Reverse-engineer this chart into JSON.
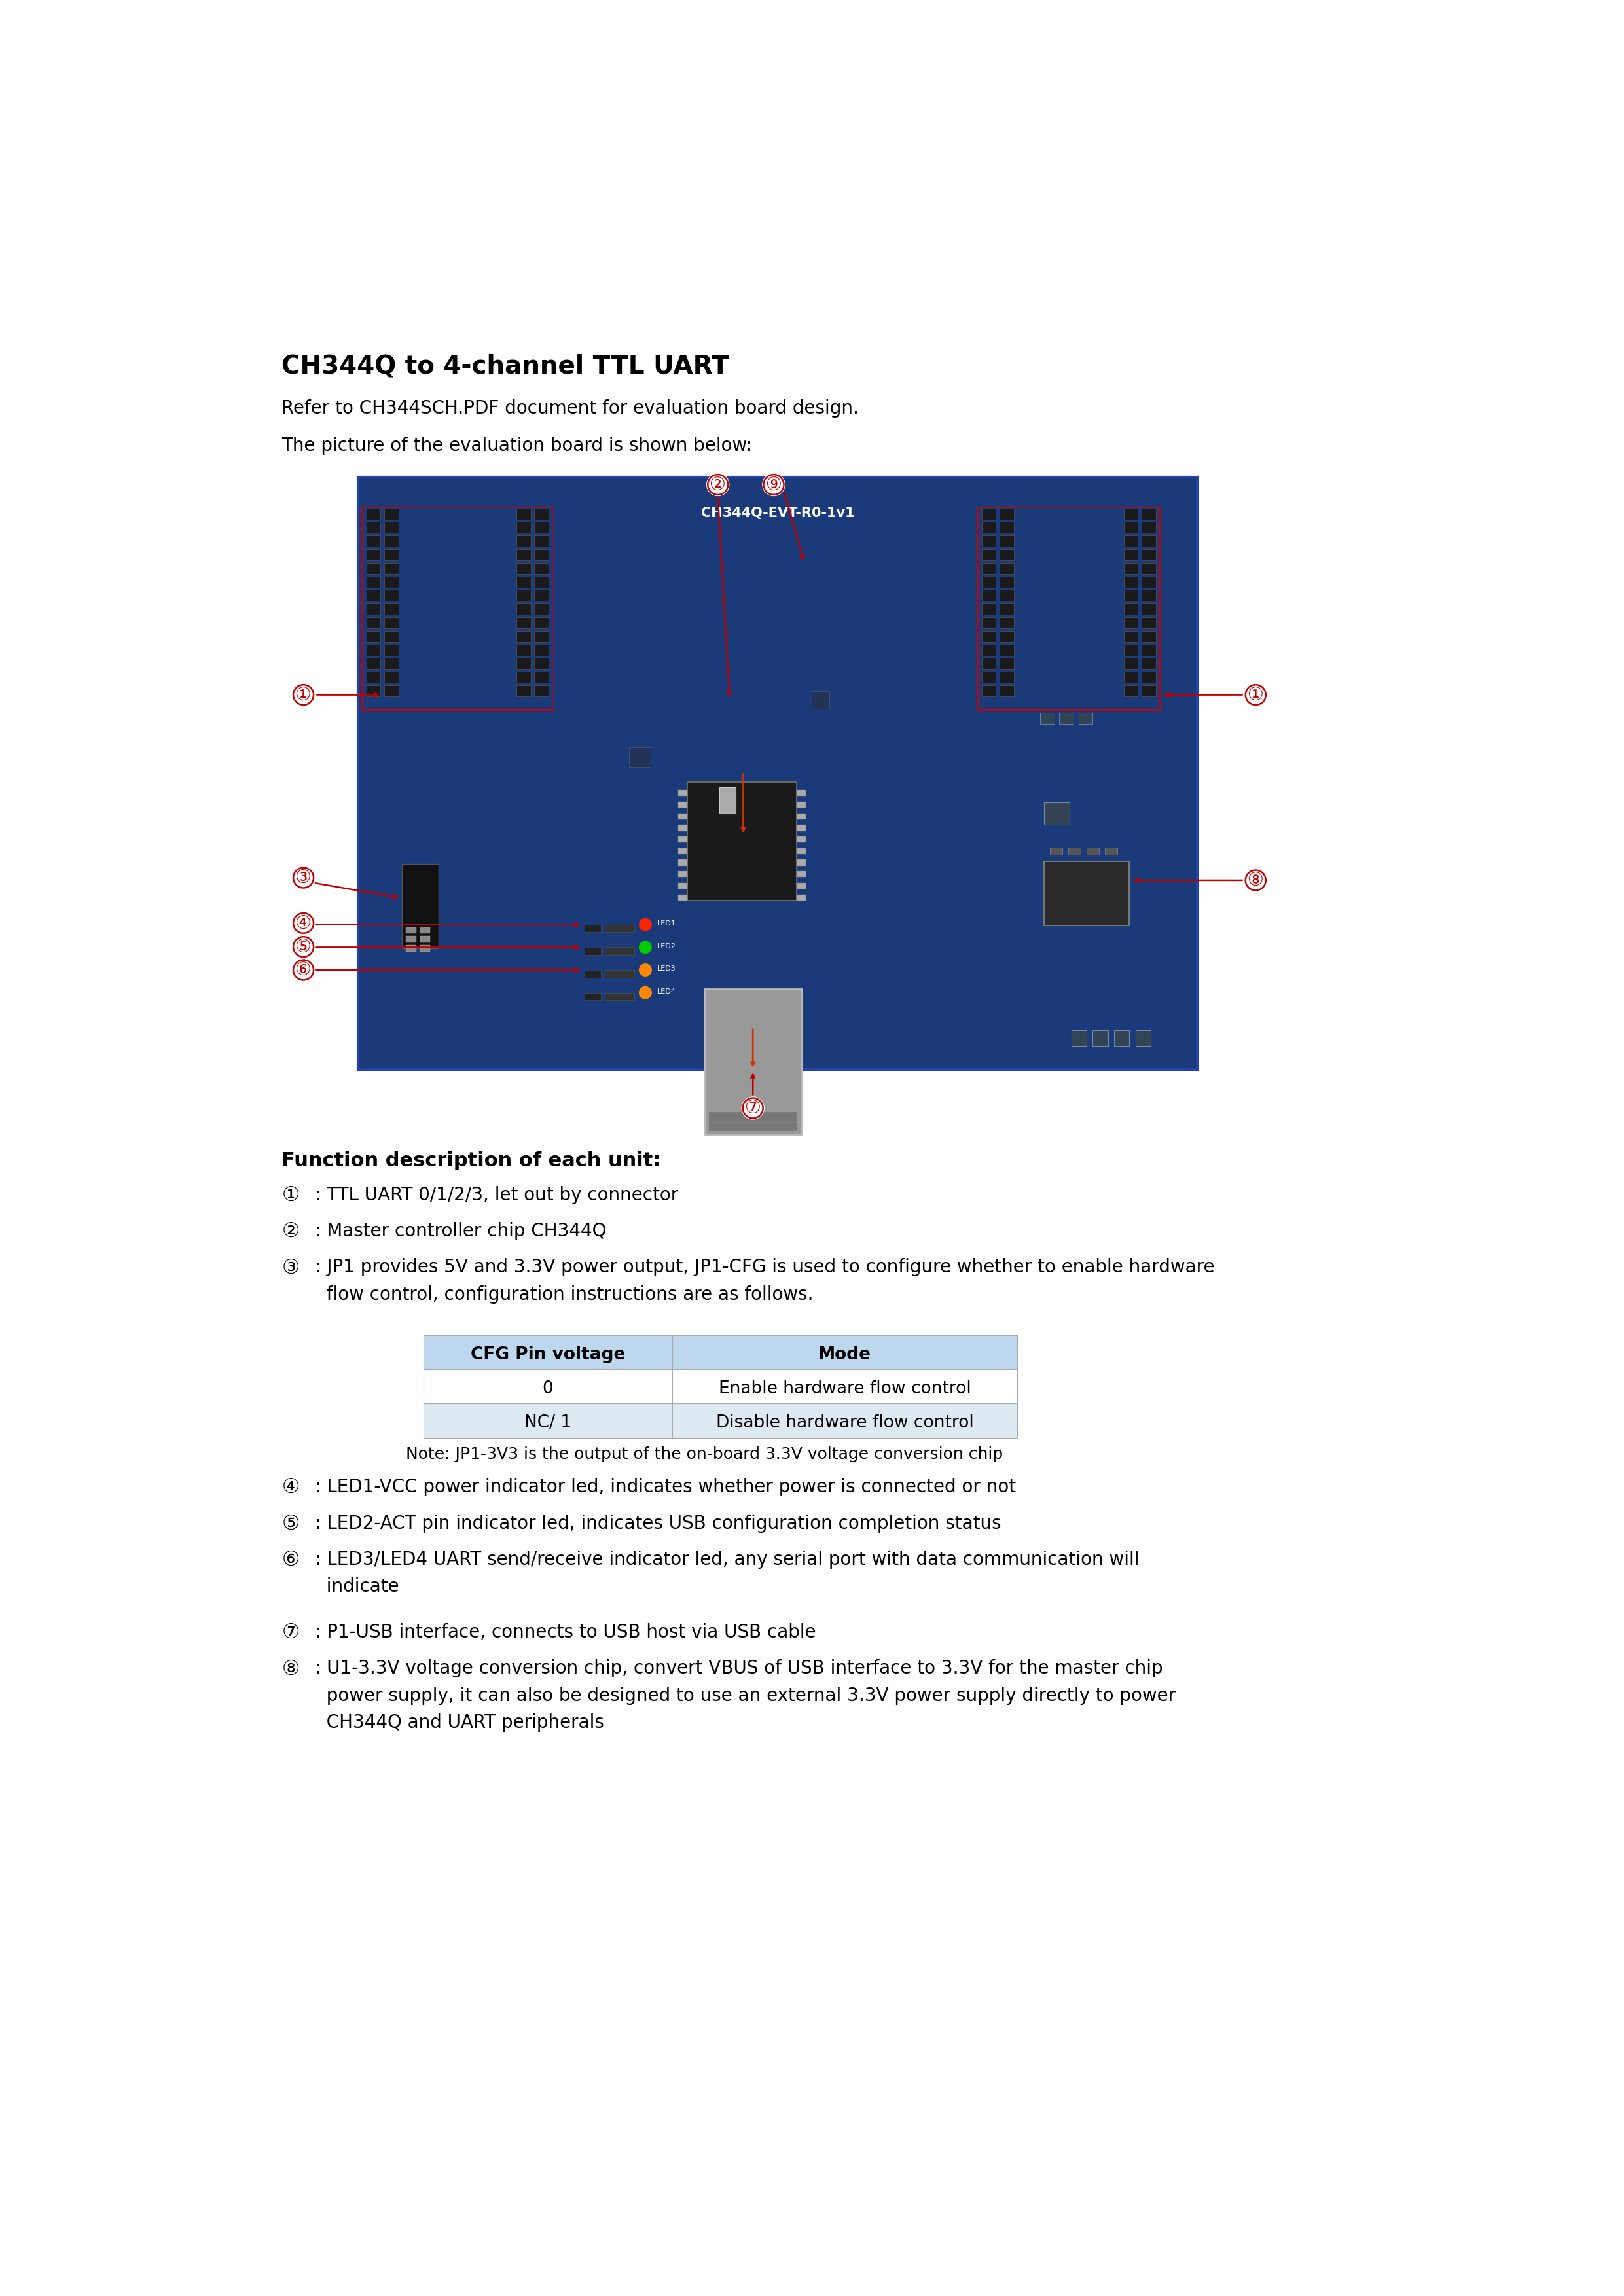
{
  "title": "CH344Q to 4-channel TTL UART",
  "subtitle1": "Refer to CH344SCH.PDF document for evaluation board design.",
  "subtitle2": "The picture of the evaluation board is shown below:",
  "bg_color": "#ffffff",
  "text_color": "#000000",
  "section_title": "Function description of each unit:",
  "table_header": [
    "CFG Pin voltage",
    "Mode"
  ],
  "table_rows": [
    [
      "0",
      "Enable hardware flow control"
    ],
    [
      "NC/ 1",
      "Disable hardware flow control"
    ]
  ],
  "table_note": "Note: JP1-3V3 is the output of the on-board 3.3V voltage conversion chip",
  "table_header_bg": "#bdd7ee",
  "table_row1_bg": "#ffffff",
  "table_row2_bg": "#deeaf1",
  "items": [
    {
      "num": "①",
      "text": ": TTL UART 0/1/2/3, let out by connector",
      "lines": 1
    },
    {
      "num": "②",
      "text": ": Master controller chip CH344Q",
      "lines": 1
    },
    {
      "num": "③",
      "text": ": JP1 provides 5V and 3.3V power output, JP1-CFG is used to configure whether to enable hardware\n  flow control, configuration instructions are as follows.",
      "lines": 2
    },
    {
      "num": "④",
      "text": ": LED1-VCC power indicator led, indicates whether power is connected or not",
      "lines": 1
    },
    {
      "num": "⑤",
      "text": ": LED2-ACT pin indicator led, indicates USB configuration completion status",
      "lines": 1
    },
    {
      "num": "⑥",
      "text": ": LED3/LED4 UART send/receive indicator led, any serial port with data communication will\n  indicate",
      "lines": 2
    },
    {
      "num": "⑦",
      "text": ": P1-USB interface, connects to USB host via USB cable",
      "lines": 1
    },
    {
      "num": "⑧",
      "text": ": U1-3.3V voltage conversion chip, convert VBUS of USB interface to 3.3V for the master chip\n  power supply, it can also be designed to use an external 3.3V power supply directly to power\n  CH344Q and UART peripherals",
      "lines": 3
    }
  ],
  "arrow_color": "#c00000",
  "circle_color": "#c00000",
  "font_size_title": 28,
  "font_size_body": 20,
  "font_size_table": 19,
  "board_color": "#1a3a7a",
  "board_edge_color": "#2244aa",
  "connector_color": "#1a1a1a",
  "chip_color": "#1a1a1a",
  "usb_color": "#999999",
  "vc_color": "#2a2a2a"
}
